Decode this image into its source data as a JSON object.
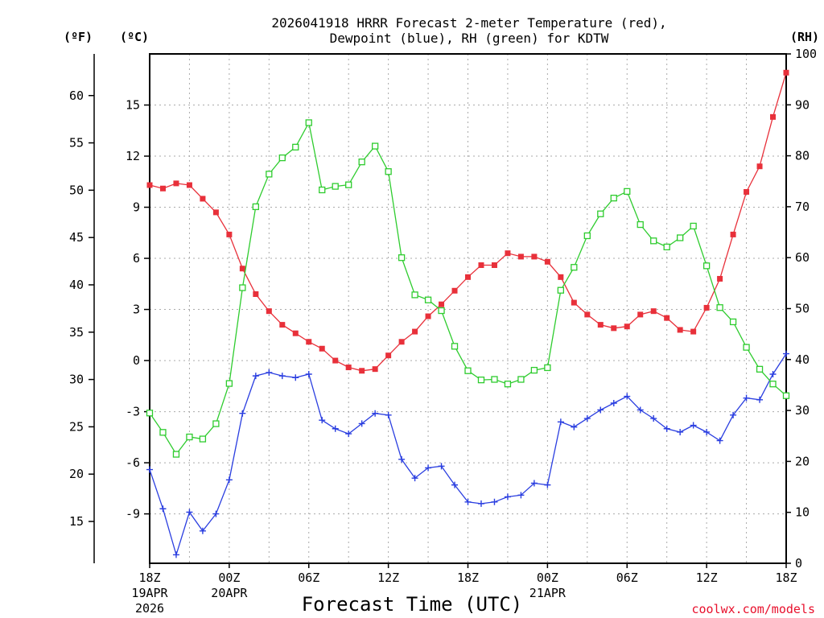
{
  "chart_data": {
    "type": "line",
    "title": "2026041918 HRRR Forecast 2-meter Temperature (red),",
    "subtitle": "Dewpoint (blue), RH (green) for KDTW",
    "xlabel": "Forecast Time (UTC)",
    "credit": "coolwx.com/models",
    "units": {
      "fahrenheit": "(ºF)",
      "celsius": "(ºC)",
      "rh": "(RH)"
    },
    "x_range": [
      0,
      48
    ],
    "x_ticks": [
      {
        "h": 0,
        "label": "18Z",
        "sub1": "19APR",
        "sub2": "2026"
      },
      {
        "h": 6,
        "label": "00Z",
        "sub1": "20APR",
        "sub2": ""
      },
      {
        "h": 12,
        "label": "06Z",
        "sub1": "",
        "sub2": ""
      },
      {
        "h": 18,
        "label": "12Z",
        "sub1": "",
        "sub2": ""
      },
      {
        "h": 24,
        "label": "18Z",
        "sub1": "",
        "sub2": ""
      },
      {
        "h": 30,
        "label": "00Z",
        "sub1": "21APR",
        "sub2": ""
      },
      {
        "h": 36,
        "label": "06Z",
        "sub1": "",
        "sub2": ""
      },
      {
        "h": 42,
        "label": "12Z",
        "sub1": "",
        "sub2": ""
      },
      {
        "h": 48,
        "label": "18Z",
        "sub1": "",
        "sub2": ""
      }
    ],
    "c_range": [
      -11.9,
      18
    ],
    "c_ticks": [
      15,
      12,
      9,
      6,
      3,
      0,
      -3,
      -6,
      -9
    ],
    "f_ticks": [
      60,
      55,
      50,
      45,
      40,
      35,
      30,
      25,
      20,
      15
    ],
    "rh_range": [
      0,
      100
    ],
    "rh_ticks": [
      100,
      90,
      80,
      70,
      60,
      50,
      40,
      30,
      20,
      10,
      0
    ],
    "series": [
      {
        "name": "2-meter Temperature (°C)",
        "color": "#e8303a",
        "marker": "filled-square",
        "axis": "celsius",
        "values": [
          10.3,
          10.1,
          10.4,
          10.3,
          9.5,
          8.7,
          7.4,
          5.4,
          3.9,
          2.9,
          2.1,
          1.6,
          1.1,
          0.7,
          0.0,
          -0.4,
          -0.6,
          -0.5,
          0.3,
          1.1,
          1.7,
          2.6,
          3.3,
          4.1,
          4.9,
          5.6,
          5.6,
          6.3,
          6.1,
          6.1,
          5.8,
          4.9,
          3.4,
          2.7,
          2.1,
          1.9,
          2.0,
          2.7,
          2.9,
          2.5,
          1.8,
          1.7,
          3.1,
          4.8,
          7.4,
          9.9,
          11.4,
          14.3,
          16.9
        ]
      },
      {
        "name": "Dewpoint (°C)",
        "color": "#2a3ee0",
        "marker": "plus",
        "axis": "celsius",
        "values": [
          -6.4,
          -8.7,
          -11.4,
          -8.9,
          -10.0,
          -9.0,
          -7.0,
          -3.1,
          -0.9,
          -0.7,
          -0.9,
          -1.0,
          -0.8,
          -3.5,
          -4.0,
          -4.3,
          -3.7,
          -3.1,
          -3.2,
          -5.8,
          -6.9,
          -6.3,
          -6.2,
          -7.3,
          -8.3,
          -8.4,
          -8.3,
          -8.0,
          -7.9,
          -7.2,
          -7.3,
          -3.6,
          -3.9,
          -3.4,
          -2.9,
          -2.5,
          -2.1,
          -2.9,
          -3.4,
          -4.0,
          -4.2,
          -3.8,
          -4.2,
          -4.7,
          -3.2,
          -2.2,
          -2.3,
          -0.8,
          0.4
        ]
      },
      {
        "name": "RH (%)",
        "color": "#2ecc2e",
        "marker": "open-square",
        "axis": "rh",
        "values": [
          29.5,
          25.7,
          21.4,
          24.8,
          24.4,
          27.4,
          35.3,
          54.1,
          70.0,
          76.4,
          79.6,
          81.7,
          86.5,
          73.3,
          74.0,
          74.3,
          78.8,
          81.9,
          76.9,
          60.0,
          52.7,
          51.7,
          49.6,
          42.6,
          37.8,
          36.0,
          36.1,
          35.2,
          36.1,
          37.9,
          38.4,
          53.6,
          58.1,
          64.3,
          68.6,
          71.7,
          73.0,
          66.5,
          63.3,
          62.1,
          63.9,
          66.2,
          58.4,
          50.2,
          47.4,
          42.4,
          38.1,
          35.2,
          32.9
        ]
      }
    ]
  }
}
